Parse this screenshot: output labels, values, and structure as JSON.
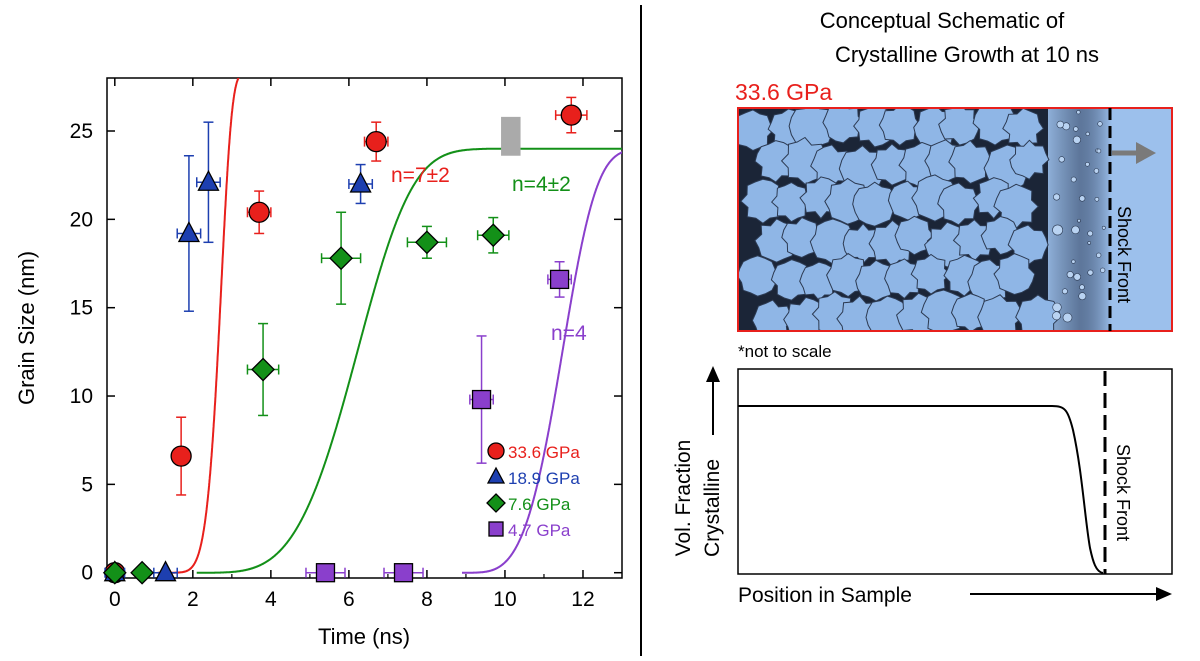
{
  "chart_data": {
    "type": "scatter",
    "xlabel": "Time (ns)",
    "ylabel": "Grain Size (nm)",
    "xlim": [
      -0.2,
      13
    ],
    "ylim": [
      -0.3,
      28
    ],
    "xticks": [
      "0",
      "2",
      "4",
      "6",
      "8",
      "10",
      "12"
    ],
    "yticks": [
      "0",
      "5",
      "10",
      "15",
      "20",
      "25"
    ],
    "series": [
      {
        "name": "33.6 GPa",
        "color": "#e8201c",
        "marker": "circle",
        "points": [
          {
            "x": 0,
            "y": 0,
            "xerr": 0,
            "yerr": 0
          },
          {
            "x": 1.7,
            "y": 6.6,
            "xerr": 0,
            "yerr": 2.2
          },
          {
            "x": 3.7,
            "y": 20.4,
            "xerr": 0.3,
            "yerr": 1.2
          },
          {
            "x": 6.7,
            "y": 24.4,
            "xerr": 0.3,
            "yerr": 1.1
          },
          {
            "x": 11.7,
            "y": 25.9,
            "xerr": 0.4,
            "yerr": 1.0
          }
        ]
      },
      {
        "name": "18.9 GPa",
        "color": "#1d3fb0",
        "marker": "triangle",
        "points": [
          {
            "x": 0,
            "y": 0,
            "xerr": 0.25,
            "yerr": 0
          },
          {
            "x": 1.3,
            "y": 0,
            "xerr": 0.3,
            "yerr": 0
          },
          {
            "x": 1.9,
            "y": 19.2,
            "xerr": 0.3,
            "yerr": 4.4
          },
          {
            "x": 2.4,
            "y": 22.1,
            "xerr": 0.3,
            "yerr": 3.4
          },
          {
            "x": 6.3,
            "y": 22.0,
            "xerr": 0.3,
            "yerr": 1.1
          }
        ]
      },
      {
        "name": "7.6 GPa",
        "color": "#139018",
        "marker": "diamond",
        "points": [
          {
            "x": 0,
            "y": 0,
            "xerr": 0,
            "yerr": 0
          },
          {
            "x": 0.7,
            "y": 0,
            "xerr": 0,
            "yerr": 0
          },
          {
            "x": 3.8,
            "y": 11.5,
            "xerr": 0.4,
            "yerr": 2.6
          },
          {
            "x": 5.8,
            "y": 17.8,
            "xerr": 0.5,
            "yerr": 2.6
          },
          {
            "x": 8.0,
            "y": 18.7,
            "xerr": 0.5,
            "yerr": 0.9
          },
          {
            "x": 9.7,
            "y": 19.1,
            "xerr": 0.4,
            "yerr": 1.0
          }
        ]
      },
      {
        "name": "4.7 GPa",
        "color": "#8a3fcc",
        "marker": "square",
        "points": [
          {
            "x": 5.4,
            "y": 0,
            "xerr": 0.5,
            "yerr": 0
          },
          {
            "x": 7.4,
            "y": 0,
            "xerr": 0.5,
            "yerr": 0
          },
          {
            "x": 9.4,
            "y": 9.8,
            "xerr": 0.3,
            "yerr": 3.6
          },
          {
            "x": 11.4,
            "y": 16.6,
            "xerr": 0.3,
            "yerr": 1.0
          }
        ]
      }
    ],
    "fits": [
      {
        "label": "n=7±2",
        "color": "#e8201c",
        "t0": 1.1,
        "ymax": 28.3,
        "k": 0.6,
        "n": 7
      },
      {
        "label": "n=4±2",
        "color": "#139018",
        "t0": 2.1,
        "ymax": 24.0,
        "k": 0.225,
        "n": 4
      },
      {
        "label": "n=4",
        "color": "#8a3fcc",
        "t0": 8.9,
        "ymax": 24.0,
        "k": 0.36,
        "n": 4
      }
    ],
    "reference_box": {
      "x0": 9.9,
      "x1": 10.4,
      "y0": 23.6,
      "y1": 25.8,
      "color": "#aaaaaa"
    },
    "legend": [
      "33.6 GPa",
      "18.9 GPa",
      "7.6 GPa",
      "4.7 GPa"
    ]
  },
  "schematic": {
    "title_line1": "Conceptual Schematic of",
    "title_line2": "Crystalline Growth at 10 ns",
    "pressure_label": "33.6 GPa",
    "shock_front_label": "Shock Front",
    "note": "*not to scale"
  },
  "profile": {
    "ylabel_line1": "Vol. Fraction",
    "ylabel_line2": "Crystalline",
    "xlabel": "Position in Sample",
    "shock_front_label": "Shock Front"
  }
}
